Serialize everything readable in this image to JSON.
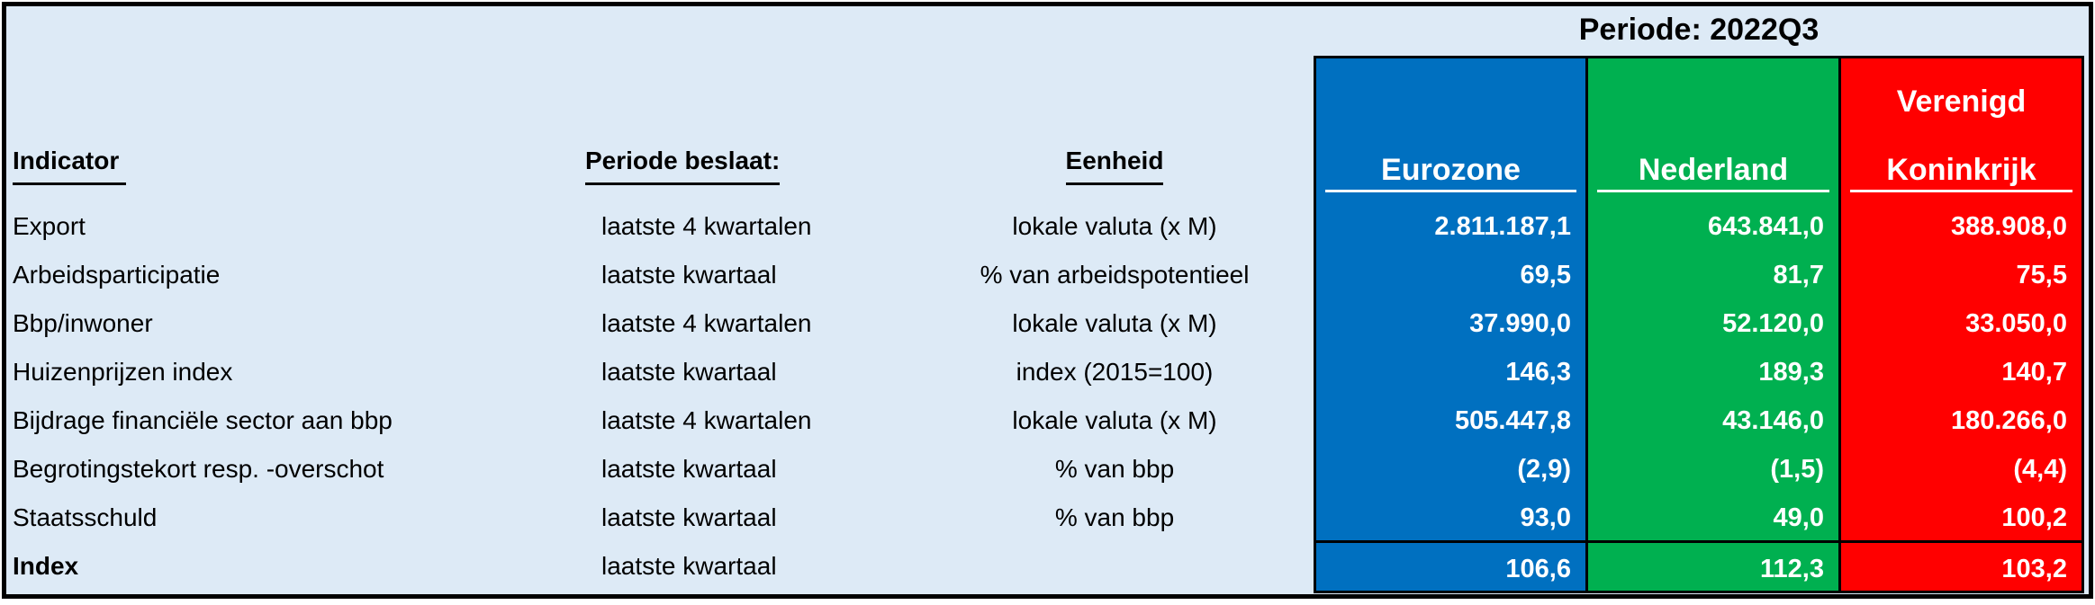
{
  "title": {
    "period": "Periode: 2022Q3"
  },
  "columns": {
    "indicator": "Indicator",
    "period": "Periode beslaat:",
    "unit": "Eenheid"
  },
  "countries": [
    {
      "id": "eurozone",
      "label_lines": [
        "Eurozone"
      ],
      "color": "#0070C0"
    },
    {
      "id": "nederland",
      "label_lines": [
        "Nederland"
      ],
      "color": "#00B050"
    },
    {
      "id": "verenigd-koninkrijk",
      "label_lines": [
        "Verenigd",
        "Koninkrijk"
      ],
      "color": "#FF0000"
    }
  ],
  "rows": [
    {
      "indicator": "Export",
      "period": "laatste 4 kwartalen",
      "unit": "lokale valuta (x M)",
      "values": [
        "2.811.187,1",
        "643.841,0",
        "388.908,0"
      ],
      "bold_indicator": false,
      "separator_above": false
    },
    {
      "indicator": "Arbeidsparticipatie",
      "period": "laatste kwartaal",
      "unit": "% van arbeidspotentieel",
      "values": [
        "69,5",
        "81,7",
        "75,5"
      ],
      "bold_indicator": false,
      "separator_above": false
    },
    {
      "indicator": "Bbp/inwoner",
      "period": "laatste 4 kwartalen",
      "unit": "lokale valuta (x M)",
      "values": [
        "37.990,0",
        "52.120,0",
        "33.050,0"
      ],
      "bold_indicator": false,
      "separator_above": false
    },
    {
      "indicator": "Huizenprijzen index",
      "period": "laatste kwartaal",
      "unit": "index (2015=100)",
      "values": [
        "146,3",
        "189,3",
        "140,7"
      ],
      "bold_indicator": false,
      "separator_above": false
    },
    {
      "indicator": "Bijdrage financiële sector aan bbp",
      "period": "laatste 4 kwartalen",
      "unit": "lokale valuta (x M)",
      "values": [
        "505.447,8",
        "43.146,0",
        "180.266,0"
      ],
      "bold_indicator": false,
      "separator_above": false
    },
    {
      "indicator": "Begrotingstekort resp. -overschot",
      "period": "laatste kwartaal",
      "unit": "% van bbp",
      "values": [
        "(2,9)",
        "(1,5)",
        "(4,4)"
      ],
      "bold_indicator": false,
      "separator_above": false
    },
    {
      "indicator": "Staatsschuld",
      "period": "laatste kwartaal",
      "unit": "% van bbp",
      "values": [
        "93,0",
        "49,0",
        "100,2"
      ],
      "bold_indicator": false,
      "separator_above": false
    },
    {
      "indicator": "Index",
      "period": "laatste kwartaal",
      "unit": "",
      "values": [
        "106,6",
        "112,3",
        "103,2"
      ],
      "bold_indicator": true,
      "separator_above": true
    }
  ],
  "colors": {
    "background": "#DDEAF6",
    "border": "#000000",
    "header_text": "#000000",
    "value_text": "#FFFFFF"
  }
}
